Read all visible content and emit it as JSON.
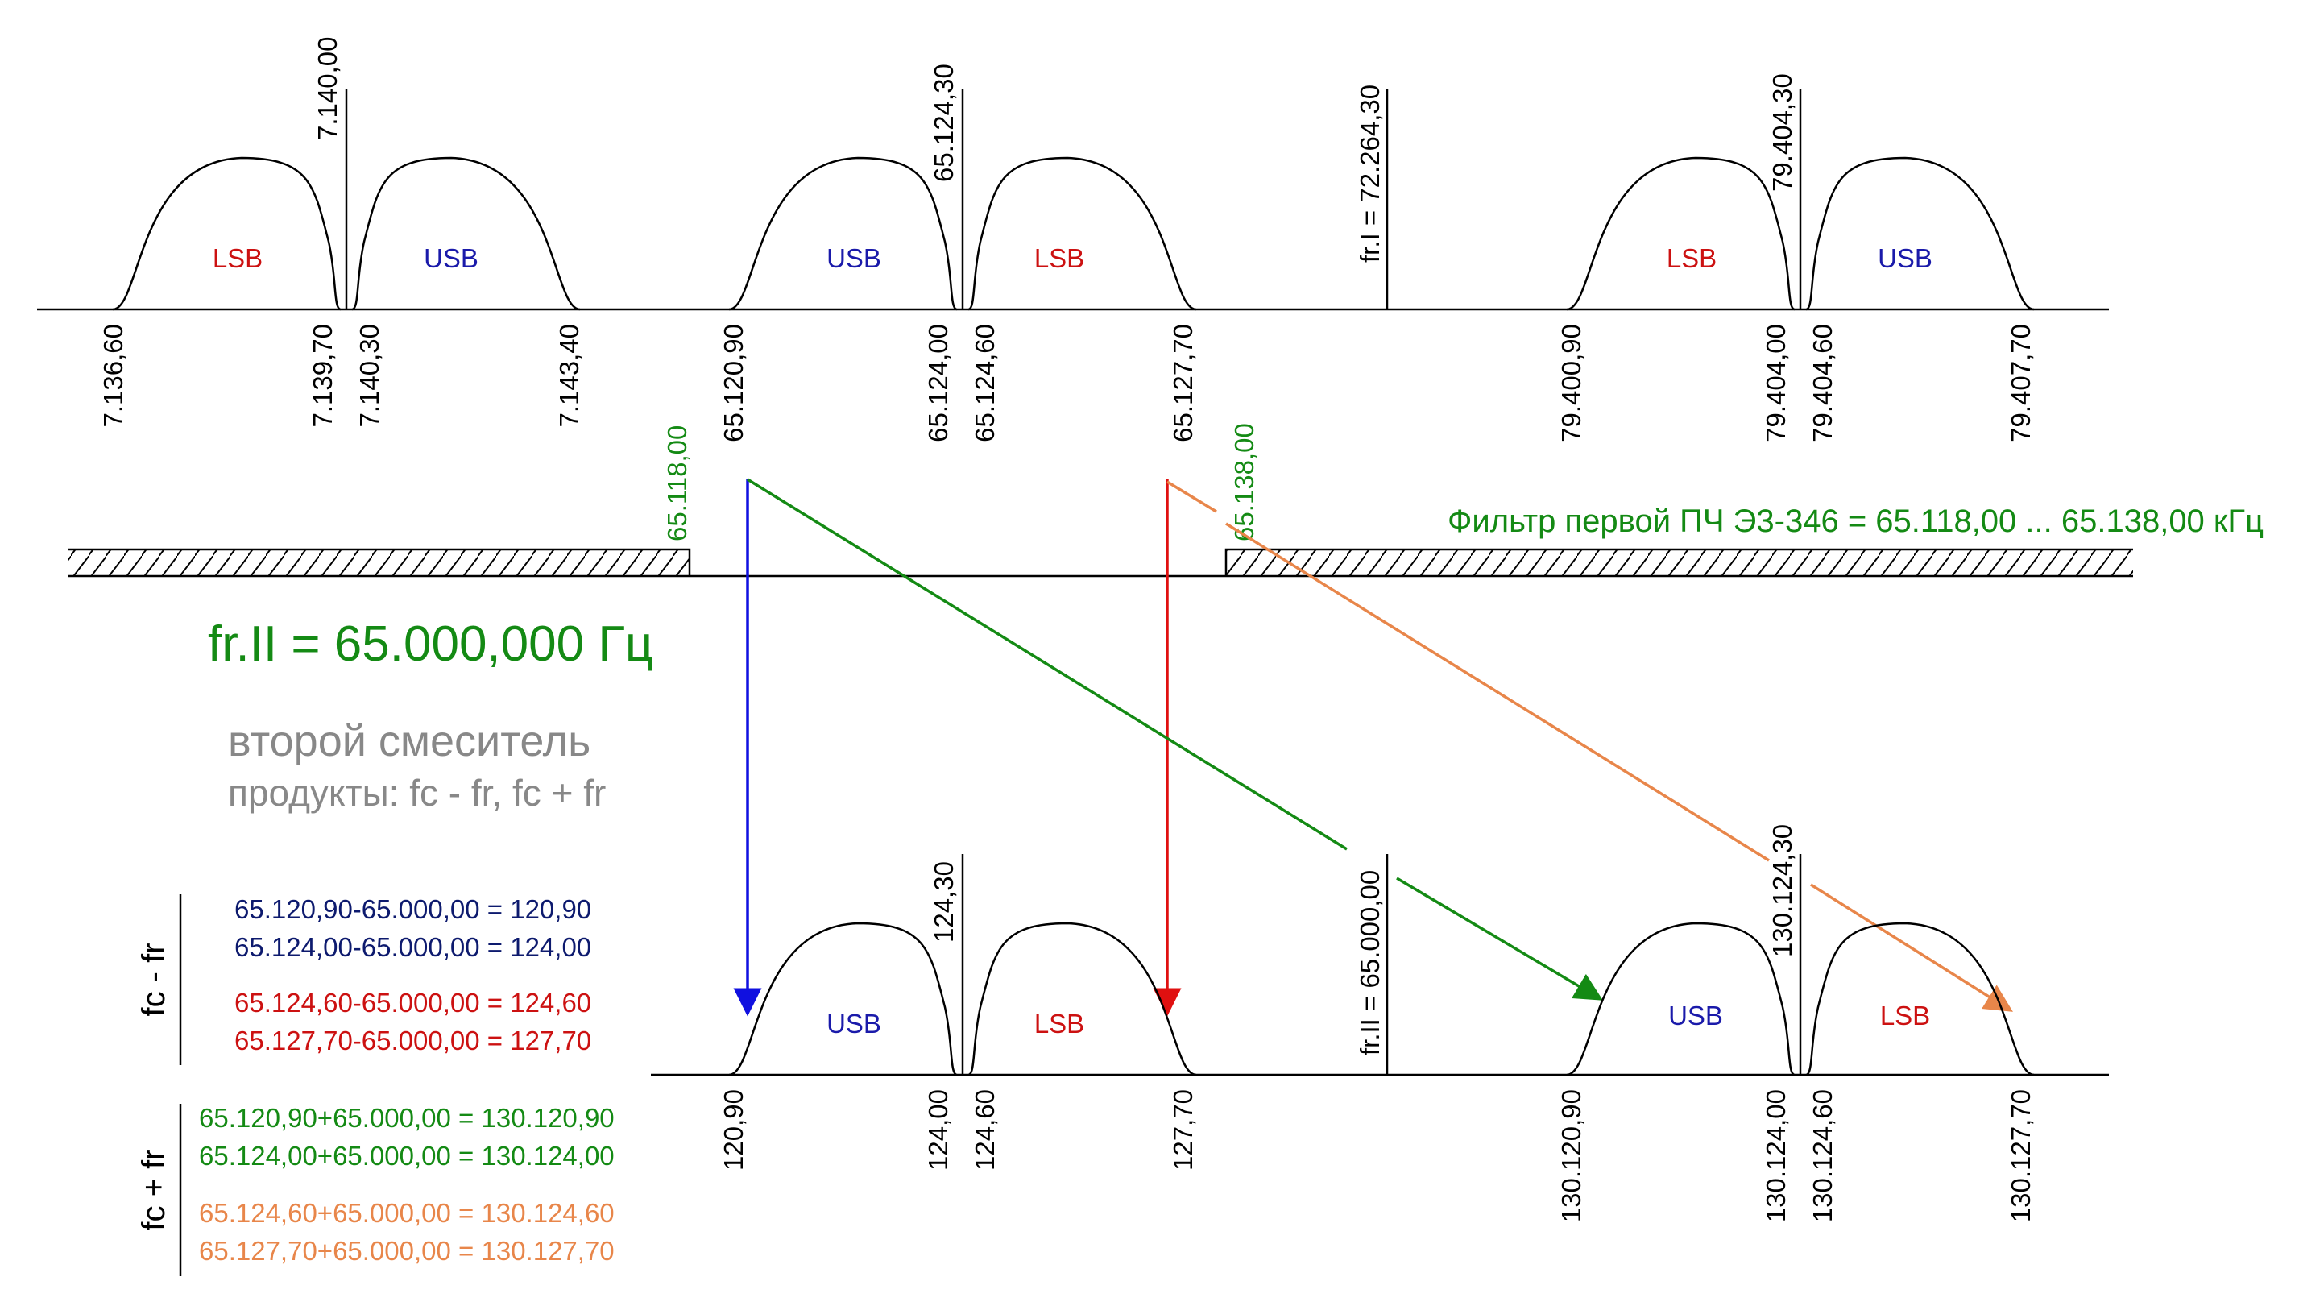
{
  "colors": {
    "lsb": "#cc1111",
    "usb": "#1a1aaa",
    "green": "#148a14",
    "orange": "#e8864a",
    "red_arrow": "#e01010",
    "blue_arrow": "#1010e0",
    "gray": "#888888",
    "navy": "#0d1a6e",
    "line": "#000000"
  },
  "top": {
    "group1": {
      "center_label": "7.140,00",
      "left_sb": "LSB",
      "right_sb": "USB",
      "ticks": [
        "7.136,60",
        "7.139,70",
        "7.140,30",
        "7.143,40"
      ]
    },
    "group2": {
      "center_label": "65.124,30",
      "left_sb": "USB",
      "right_sb": "LSB",
      "ticks": [
        "65.120,90",
        "65.124,00",
        "65.124,60",
        "65.127,70"
      ]
    },
    "lo1_label": "fr.I = 72.264,30",
    "group3": {
      "center_label": "79.404,30",
      "left_sb": "LSB",
      "right_sb": "USB",
      "ticks": [
        "79.400,90",
        "79.404,00",
        "79.404,60",
        "79.407,70"
      ]
    }
  },
  "filter": {
    "low_edge": "65.118,00",
    "high_edge": "65.138,00",
    "label": "Фильтр первой ПЧ Э3-346 = 65.118,00 ... 65.138,00 кГц"
  },
  "lo2_title": "fr.II = 65.000,000 Гц",
  "mixer_title": "второй смеситель",
  "mixer_products": "продукты: fc - fr, fc + fr",
  "bottom": {
    "group1": {
      "center_label": "124,30",
      "left_sb": "USB",
      "right_sb": "LSB",
      "ticks": [
        "120,90",
        "124,00",
        "124,60",
        "127,70"
      ]
    },
    "lo2_label": "fr.II = 65.000,00",
    "group2": {
      "center_label": "130.124,30",
      "left_sb": "USB",
      "right_sb": "LSB",
      "ticks": [
        "130.120,90",
        "130.124,00",
        "130.124,60",
        "130.127,70"
      ]
    }
  },
  "equations": {
    "diff_label": "fc - fr",
    "diff": [
      "65.120,90-65.000,00 = 120,90",
      "65.124,00-65.000,00 = 124,00",
      "65.124,60-65.000,00 = 124,60",
      "65.127,70-65.000,00 = 127,70"
    ],
    "sum_label": "fc + fr",
    "sum": [
      "65.120,90+65.000,00 = 130.120,90",
      "65.124,00+65.000,00 = 130.124,00",
      "65.124,60+65.000,00 = 130.124,60",
      "65.127,70+65.000,00 = 130.127,70"
    ]
  }
}
